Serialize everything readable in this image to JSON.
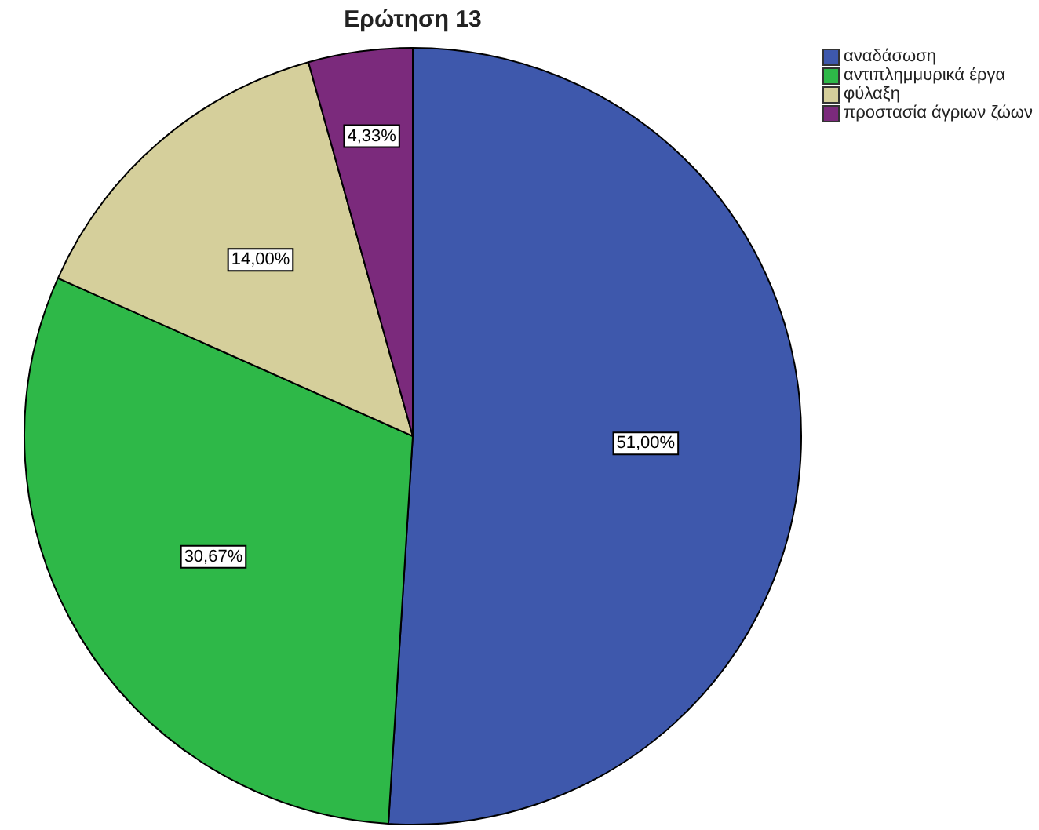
{
  "chart_data": {
    "type": "pie",
    "title": "Ερώτηση 13",
    "categories": [
      "αναδάσωση",
      "αντιπλημμυρικά έργα",
      "φύλαξη",
      "προστασία άγριων ζώων"
    ],
    "values": [
      51,
      30.67,
      14,
      4.33
    ],
    "colors": [
      "#3e58ac",
      "#2eb848",
      "#d5cf9b",
      "#7b2a7c"
    ],
    "value_labels": [
      "51,00%",
      "30,67%",
      "14,00%",
      "4,33%"
    ],
    "legend": "top right"
  }
}
